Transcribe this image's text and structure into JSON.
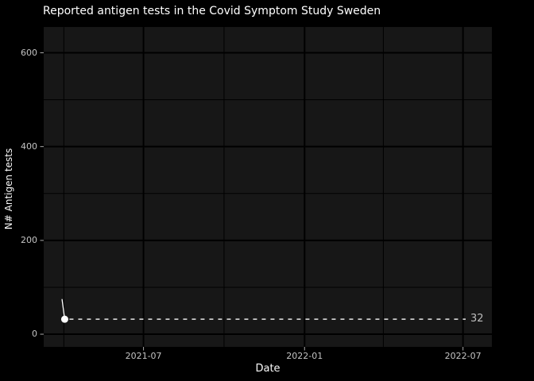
{
  "chart_data": {
    "type": "line",
    "title": "Reported antigen tests in the Covid Symptom Study Sweden",
    "xlabel": "Date",
    "ylabel": "N# Antigen tests",
    "x_ticks": [
      {
        "label": "2021-07",
        "date": "2021-07-01"
      },
      {
        "label": "2022-01",
        "date": "2022-01-01"
      },
      {
        "label": "2022-07",
        "date": "2022-07-01"
      }
    ],
    "x_minor_gridlines": [
      "2021-04-01",
      "2021-10-01",
      "2022-04-01"
    ],
    "y_ticks": [
      {
        "label": "0",
        "value": 0
      },
      {
        "label": "200",
        "value": 200
      },
      {
        "label": "400",
        "value": 400
      },
      {
        "label": "600",
        "value": 600
      }
    ],
    "y_minor_gridlines": [
      100,
      300,
      500
    ],
    "xlim": [
      "2021-03-09",
      "2022-08-03"
    ],
    "ylim": [
      -27,
      655
    ],
    "grid": true,
    "legend": false,
    "series": [
      {
        "points": [
          {
            "date": "2021-03-30",
            "value": 74
          },
          {
            "date": "2021-04-02",
            "value": 32
          }
        ],
        "marker_on_last": true
      }
    ],
    "annotation": {
      "type": "dashed_hline",
      "value": 32,
      "label": "32"
    }
  },
  "colors": {
    "figure_bg": "#000000",
    "panel_bg": "#171717",
    "gridline": "#000000",
    "title_text": "#ffffff",
    "axis_title_text": "#fafafa",
    "tick_label_text": "#c3c3c3",
    "tick_mark": "#a8a8a8",
    "series_line": "#ffffff",
    "marker": "#ffffff",
    "dashed_line": "#e8e8e8",
    "annotation_text": "#bdbdbd"
  }
}
